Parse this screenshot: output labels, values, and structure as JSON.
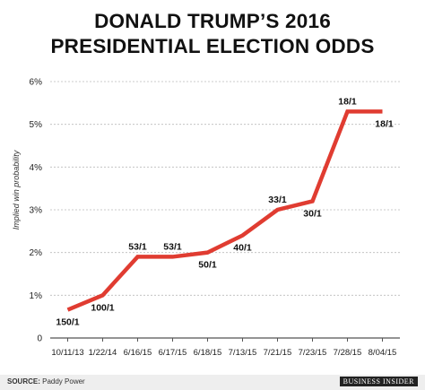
{
  "chart_data": {
    "type": "line",
    "title_line1": "DONALD TRUMP’S 2016",
    "title_line2": "PRESIDENTIAL ELECTION ODDS",
    "ylabel": "Implied win probability",
    "xlabel": "",
    "categories": [
      "10/11/13",
      "1/22/14",
      "6/16/15",
      "6/17/15",
      "6/18/15",
      "7/13/15",
      "7/21/15",
      "7/23/15",
      "7/28/15",
      "8/04/15"
    ],
    "values": [
      0.66,
      1.0,
      1.9,
      1.9,
      2.0,
      2.4,
      3.0,
      3.2,
      5.3,
      5.3
    ],
    "point_labels": [
      "150/1",
      "100/1",
      "53/1",
      "53/1",
      "50/1",
      "40/1",
      "33/1",
      "30/1",
      "18/1",
      "18/1"
    ],
    "label_positions": [
      "below",
      "below",
      "above",
      "above",
      "below",
      "below",
      "above",
      "below",
      "above",
      "below"
    ],
    "ylim": [
      0,
      6
    ],
    "yticks": [
      0,
      1,
      2,
      3,
      4,
      5,
      6
    ],
    "ytick_labels": [
      "0",
      "1%",
      "2%",
      "3%",
      "4%",
      "5%",
      "6%"
    ],
    "grid": true,
    "line_color": "#e03c31"
  },
  "footer": {
    "source_label": "SOURCE:",
    "source_text": "Paddy Power",
    "brand": "BUSINESS INSIDER"
  }
}
